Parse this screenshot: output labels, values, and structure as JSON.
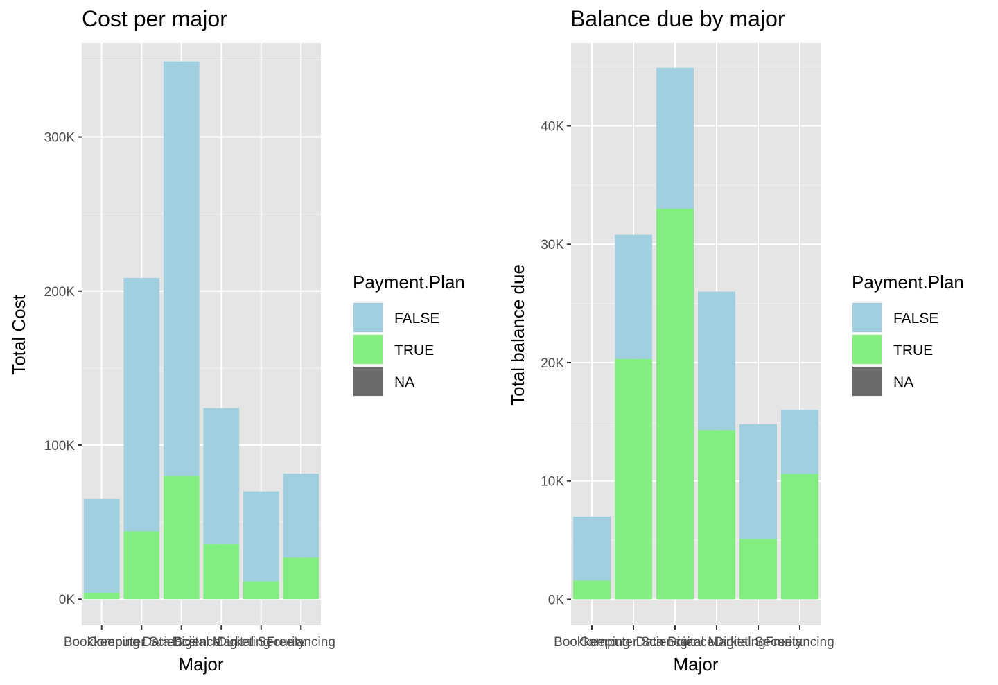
{
  "chart_data": [
    {
      "type": "bar",
      "stacked": true,
      "title": "Cost per major",
      "xlabel": "Major",
      "ylabel": "Total Cost",
      "categories": [
        "Bookkeeping",
        "Computer Science",
        "Data Science",
        "Digital Marketing",
        "Digital Security",
        "Freelancing"
      ],
      "ylim": [
        -17000,
        361000
      ],
      "yticks": [
        0,
        100000,
        200000,
        300000
      ],
      "ytick_labels": [
        "0K",
        "100K",
        "200K",
        "300K"
      ],
      "series": [
        {
          "name": "TRUE",
          "color": "#82ee82",
          "values": [
            4000,
            44000,
            80000,
            36000,
            11500,
            27000
          ]
        },
        {
          "name": "FALSE",
          "color": "#a0cfe0",
          "values": [
            61000,
            164500,
            269000,
            88000,
            58500,
            54500
          ]
        }
      ],
      "grid": true,
      "legend": {
        "title": "Payment.Plan",
        "position": "right",
        "entries": [
          {
            "label": "FALSE",
            "color": "#a0cfe0"
          },
          {
            "label": "TRUE",
            "color": "#82ee82"
          },
          {
            "label": "NA",
            "color": "#6b6b6b"
          }
        ]
      }
    },
    {
      "type": "bar",
      "stacked": true,
      "title": "Balance due by major",
      "xlabel": "Major",
      "ylabel": "Total balance due",
      "categories": [
        "Bookkeeping",
        "Computer Science",
        "Data Science",
        "Digital Marketing",
        "Digital Security",
        "Freelancing"
      ],
      "ylim": [
        -2200,
        47000
      ],
      "yticks": [
        0,
        10000,
        20000,
        30000,
        40000
      ],
      "ytick_labels": [
        "0K",
        "10K",
        "20K",
        "30K",
        "40K"
      ],
      "series": [
        {
          "name": "TRUE",
          "color": "#82ee82",
          "values": [
            1600,
            20300,
            33000,
            14300,
            5100,
            10600
          ]
        },
        {
          "name": "FALSE",
          "color": "#a0cfe0",
          "values": [
            5400,
            10500,
            11900,
            11700,
            9700,
            5400
          ]
        }
      ],
      "grid": true,
      "legend": {
        "title": "Payment.Plan",
        "position": "right",
        "entries": [
          {
            "label": "FALSE",
            "color": "#a0cfe0"
          },
          {
            "label": "TRUE",
            "color": "#82ee82"
          },
          {
            "label": "NA",
            "color": "#6b6b6b"
          }
        ]
      }
    }
  ]
}
